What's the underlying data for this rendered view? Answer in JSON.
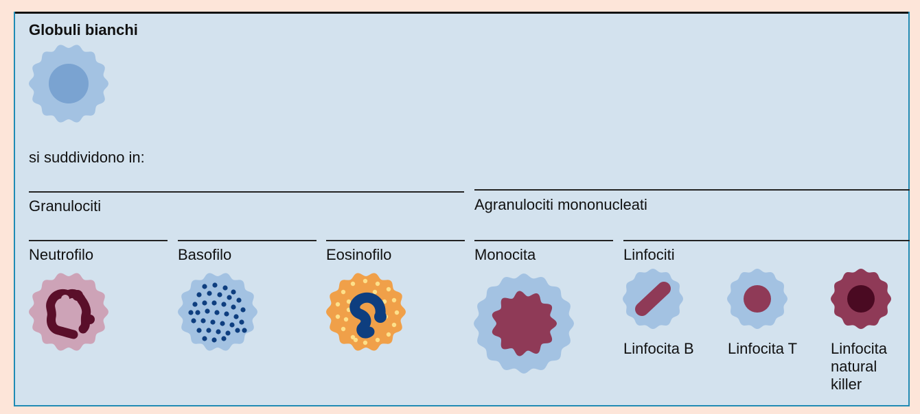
{
  "title": "Globuli bianchi",
  "subtitle": "si suddividono in:",
  "groups": {
    "granulociti": "Granulociti",
    "agranulociti": "Agranulociti mononucleati"
  },
  "cells": {
    "neutrofilo": "Neutrofilo",
    "basofilo": "Basofilo",
    "eosinofilo": "Eosinofilo",
    "monocita": "Monocita",
    "linfociti": "Linfociti"
  },
  "lymphocytes": {
    "b": "Linfocita B",
    "t": "Linfocita T",
    "nk": "Linfocita natural killer"
  },
  "colors": {
    "panel_bg": "#d3e2ee",
    "page_bg": "#fde5d9",
    "border": "#1f8ab4",
    "cell_blue": "#a3c2e2",
    "nucleus_blue": "#7aa3d1",
    "neutro_pink": "#cda3b7",
    "neutro_nucleus": "#5a0f2a",
    "granule_navy": "#0e3e7f",
    "eosino_orange": "#f0a049",
    "eosino_granule": "#fde08a",
    "maroon": "#8f3a57",
    "dark_maroon": "#4a0a22"
  }
}
